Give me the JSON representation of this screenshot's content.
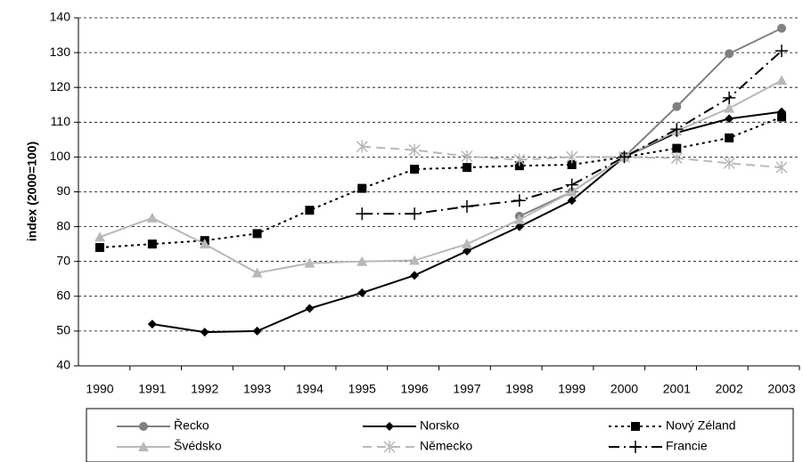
{
  "chart_data": {
    "type": "line",
    "y_label": "index (2000=100)",
    "categories": [
      "1990",
      "1991",
      "1992",
      "1993",
      "1994",
      "1995",
      "1996",
      "1997",
      "1998",
      "1999",
      "2000",
      "2001",
      "2002",
      "2003"
    ],
    "ylim": [
      40,
      140
    ],
    "yticks": [
      40,
      50,
      60,
      70,
      80,
      90,
      100,
      110,
      120,
      130,
      140
    ],
    "grid": true,
    "series": [
      {
        "name": "Řecko",
        "color": "#808080",
        "marker": "circle",
        "dash": "solid",
        "values": [
          null,
          null,
          null,
          null,
          null,
          null,
          null,
          null,
          83,
          90,
          100,
          114.5,
          129.7,
          137
        ]
      },
      {
        "name": "Norsko",
        "color": "#000000",
        "marker": "diamond",
        "dash": "solid",
        "values": [
          null,
          52,
          49.7,
          50,
          56.5,
          61,
          66,
          73,
          80,
          87.5,
          100,
          107,
          111,
          113
        ]
      },
      {
        "name": "Nový Zéland",
        "color": "#000000",
        "marker": "square",
        "dash": "dotted",
        "values": [
          74,
          75,
          76,
          78,
          84.7,
          91,
          96.5,
          97,
          97.5,
          97.8,
          100,
          102.5,
          105.5,
          111.5
        ]
      },
      {
        "name": "Švédsko",
        "color": "#b8b8b8",
        "marker": "triangle",
        "dash": "solid",
        "values": [
          77,
          82.5,
          75,
          66.7,
          69.5,
          70,
          70.3,
          75,
          82,
          90,
          100,
          107.5,
          114,
          122
        ]
      },
      {
        "name": "Německo",
        "color": "#b8b8b8",
        "marker": "star",
        "dash": "dashed",
        "values": [
          null,
          null,
          null,
          null,
          null,
          103,
          102,
          100.2,
          99.2,
          100,
          100,
          99.7,
          98.2,
          97
        ]
      },
      {
        "name": "Francie",
        "color": "#000000",
        "marker": "plus",
        "dash": "dashdot",
        "values": [
          null,
          null,
          null,
          null,
          null,
          83.7,
          83.7,
          85.8,
          87.5,
          92,
          100,
          108,
          117,
          130.5
        ]
      }
    ]
  }
}
